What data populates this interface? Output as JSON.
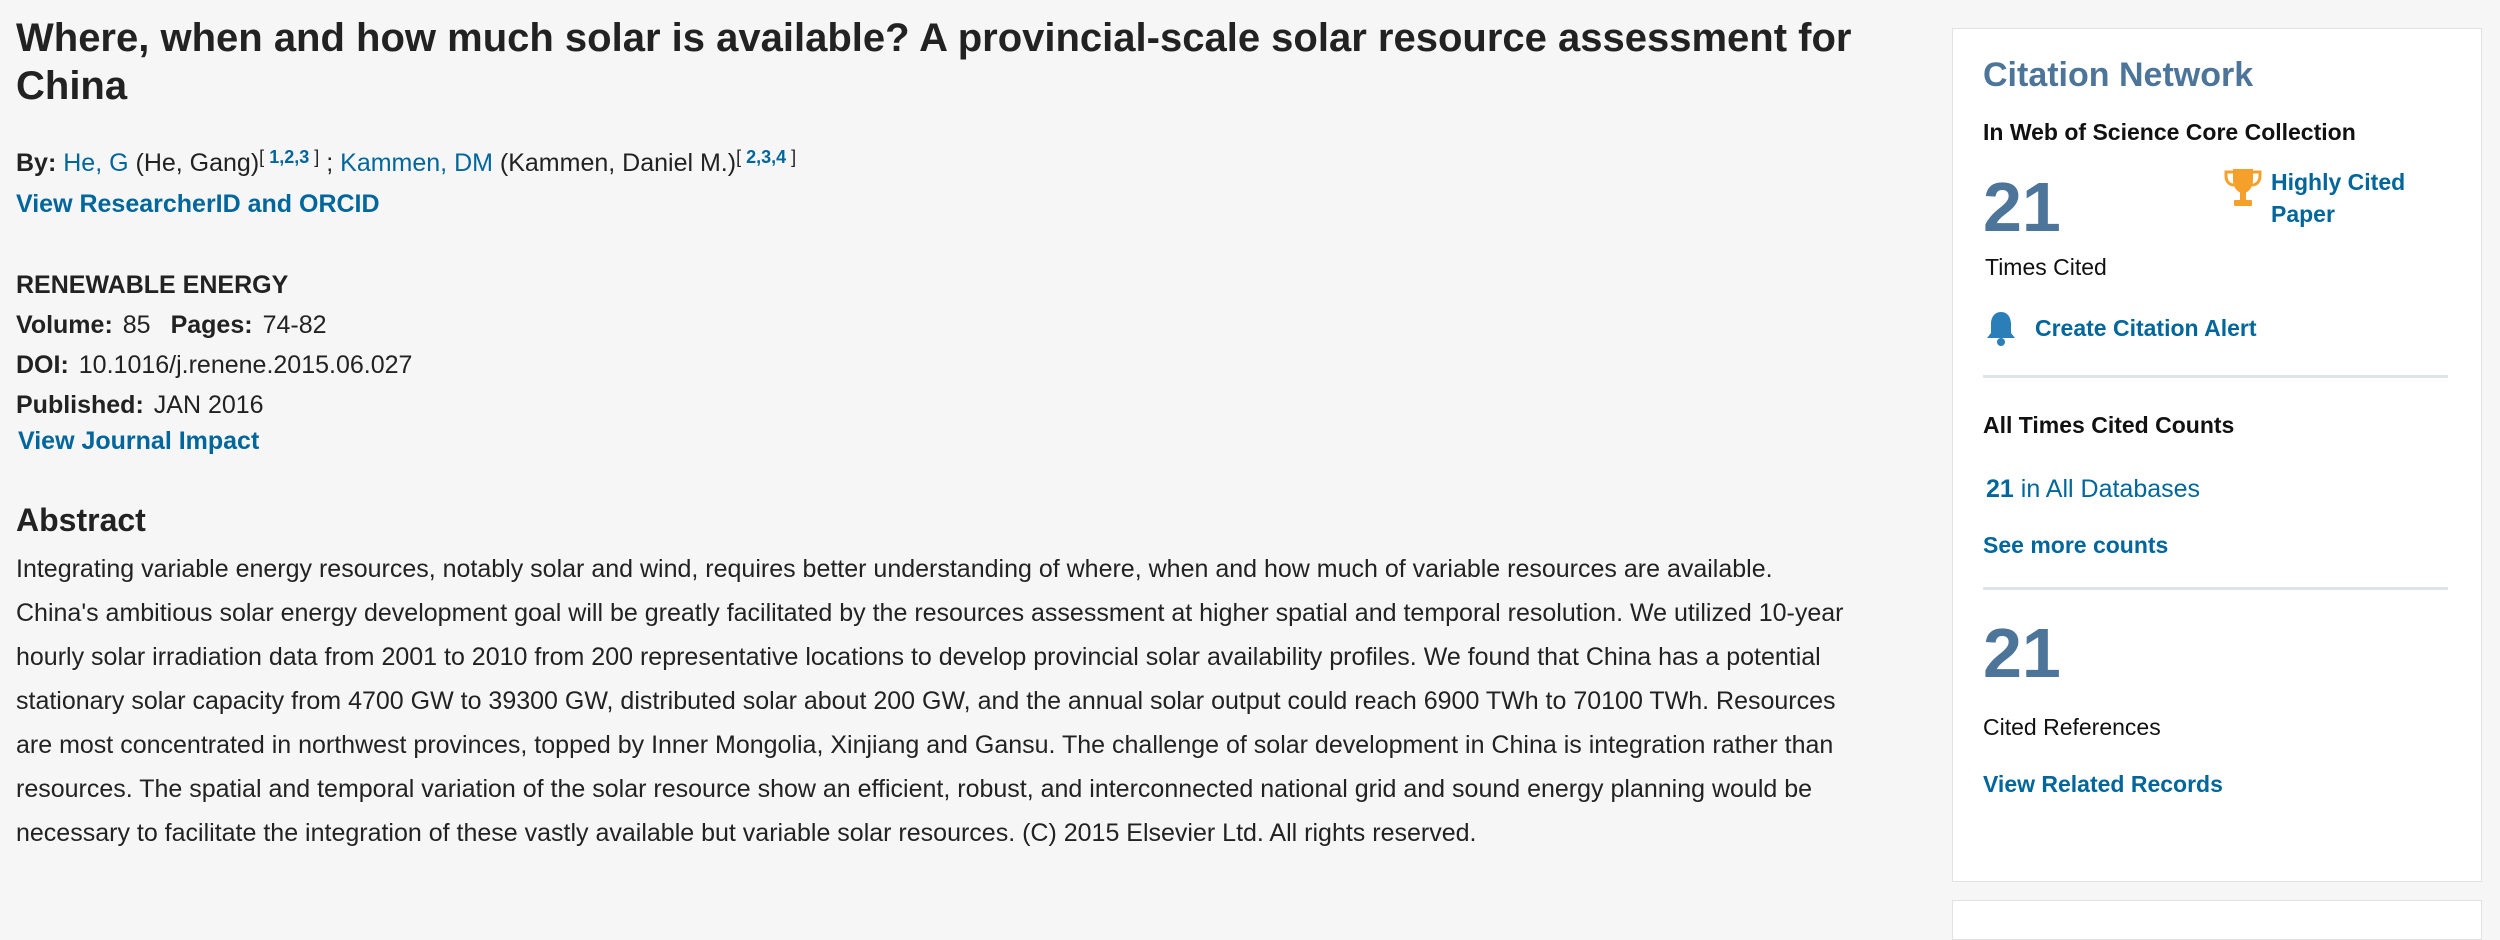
{
  "article": {
    "title": "Where, when and how much solar is available? A provincial-scale solar resource assessment for China",
    "by_label": "By:",
    "authors": [
      {
        "short": "He, G",
        "full": "(He, Gang)",
        "affiliations": "1,2,3",
        "sup_open": "[",
        "sup_close": "]"
      },
      {
        "short": "Kammen, DM",
        "full": "(Kammen, Daniel M.)",
        "affiliations": "2,3,4",
        "sup_open": "[",
        "sup_close": "]"
      }
    ],
    "author_separator": ";",
    "researcher_link": "View ResearcherID and ORCID"
  },
  "journal": {
    "name": "RENEWABLE ENERGY",
    "volume_label": "Volume:",
    "volume": "85",
    "pages_label": "Pages:",
    "pages": "74-82",
    "doi_label": "DOI:",
    "doi": "10.1016/j.renene.2015.06.027",
    "published_label": "Published:",
    "published": "JAN 2016",
    "impact_link": "View Journal Impact"
  },
  "abstract": {
    "heading": "Abstract",
    "text": "Integrating variable energy resources, notably solar and wind, requires better understanding of where, when and how much of variable resources are available. China's ambitious solar energy development goal will be greatly facilitated by the resources assessment at higher spatial and temporal resolution. We utilized 10-year hourly solar irradiation data from 2001 to 2010 from 200 representative locations to develop provincial solar availability profiles. We found that China has a potential stationary solar capacity from 4700 GW to 39300 GW, distributed solar about 200 GW, and the annual solar output could reach 6900 TWh to 70100 TWh. Resources are most concentrated in northwest provinces, topped by Inner Mongolia, Xinjiang and Gansu. The challenge of solar development in China is integration rather than resources. The spatial and temporal variation of the solar resource show an efficient, robust, and interconnected national grid and sound energy planning would be necessary to facilitate the integration of these vastly available but variable solar resources. (C) 2015 Elsevier Ltd. All rights reserved."
  },
  "sidebar": {
    "title": "Citation Network",
    "subtitle": "In Web of Science Core Collection",
    "times_cited_count": "21",
    "times_cited_label": "Times Cited",
    "highly_cited_label": "Highly Cited Paper",
    "create_alert_label": "Create Citation Alert",
    "all_counts_label": "All Times Cited Counts",
    "all_db_count": "21",
    "all_db_label": "in All Databases",
    "see_more_label": "See more counts",
    "cited_refs_count": "21",
    "cited_refs_label": "Cited References",
    "related_label": "View Related Records",
    "icons": {
      "highly_cited": "trophy-icon",
      "alert": "bell-icon"
    },
    "colors": {
      "accent": "#4d7499",
      "link": "#00669b",
      "trophy": "#f5a02a",
      "bell": "#2a7fb8"
    }
  }
}
